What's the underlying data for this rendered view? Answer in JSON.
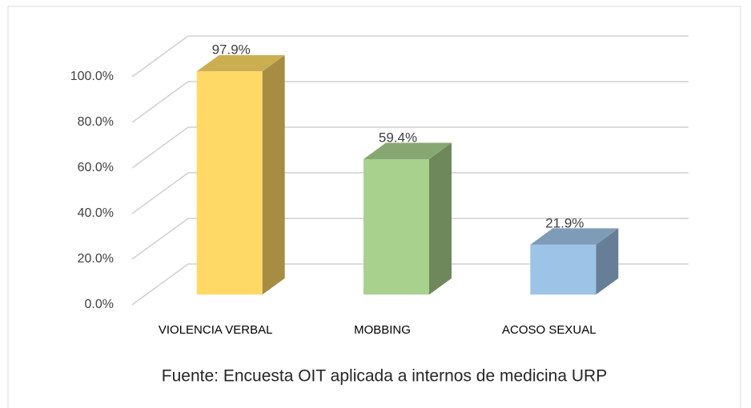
{
  "chart_data": {
    "type": "bar3d",
    "categories": [
      "VIOLENCIA VERBAL",
      "MOBBING",
      "ACOSO SEXUAL"
    ],
    "values": [
      97.9,
      59.4,
      21.9
    ],
    "value_labels": [
      "97.9%",
      "59.4%",
      "21.9%"
    ],
    "colors": [
      "#ffd966",
      "#a9d18e",
      "#9dc3e6"
    ],
    "ylim": [
      0,
      100
    ],
    "yticks": [
      {
        "value": 0,
        "label": "0.0%"
      },
      {
        "value": 20,
        "label": "20.0%"
      },
      {
        "value": 40,
        "label": "40.0%"
      },
      {
        "value": 60,
        "label": "60.0%"
      },
      {
        "value": 80,
        "label": "80.0%"
      },
      {
        "value": 100,
        "label": "100.0%"
      }
    ],
    "grid": true,
    "caption": "Fuente: Encuesta OIT aplicada a internos de medicina URP"
  }
}
